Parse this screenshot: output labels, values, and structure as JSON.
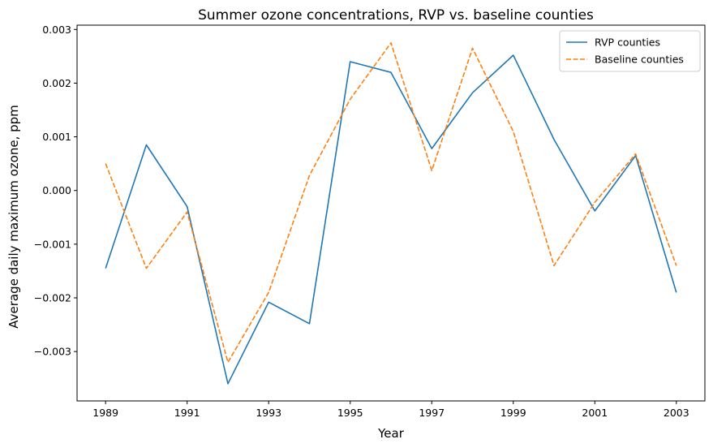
{
  "chart_data": {
    "type": "line",
    "title": "Summer ozone concentrations, RVP vs. baseline counties",
    "xlabel": "Year",
    "ylabel": "Average daily maximum ozone, ppm",
    "x": [
      1989,
      1990,
      1991,
      1992,
      1993,
      1994,
      1995,
      1996,
      1997,
      1998,
      1999,
      2000,
      2001,
      2002,
      2003
    ],
    "xticks": [
      1989,
      1991,
      1993,
      1995,
      1997,
      1999,
      2001,
      2003
    ],
    "xtick_labels": [
      "1989",
      "1991",
      "1993",
      "1995",
      "1997",
      "1999",
      "2001",
      "2003"
    ],
    "xlim": [
      1988.3,
      2003.7
    ],
    "yticks": [
      -0.003,
      -0.002,
      -0.001,
      0.0,
      0.001,
      0.002,
      0.003
    ],
    "ytick_labels": [
      "−0.003",
      "−0.002",
      "−0.001",
      "0.000",
      "0.001",
      "0.002",
      "0.003"
    ],
    "ylim": [
      -0.00392,
      0.00308
    ],
    "grid": false,
    "legend_position": "top-right",
    "series": [
      {
        "name": "RVP counties",
        "color": "#1f77b4",
        "style": "solid",
        "values": [
          -0.00145,
          0.00085,
          -0.0003,
          -0.0036,
          -0.00208,
          -0.00248,
          0.0024,
          0.0022,
          0.00078,
          0.00182,
          0.00252,
          0.00095,
          -0.00038,
          0.00065,
          -0.0019
        ]
      },
      {
        "name": "Baseline counties",
        "color": "#ff7f0e",
        "style": "dashed",
        "values": [
          0.0005,
          -0.00145,
          -0.0004,
          -0.0032,
          -0.0019,
          0.00028,
          0.0017,
          0.00275,
          0.00037,
          0.00265,
          0.0011,
          -0.0014,
          -0.00022,
          0.00068,
          -0.0014
        ]
      }
    ]
  }
}
